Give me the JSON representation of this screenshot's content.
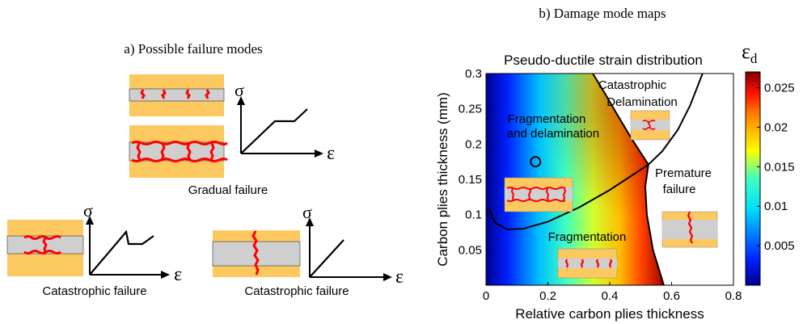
{
  "panel_a": {
    "title": "a) Possible failure modes",
    "stress_symbol": "σ",
    "strain_symbol": "ε",
    "gradual_label": "Gradual failure",
    "catastrophic_label_1": "Catastrophic failure",
    "catastrophic_label_2": "Catastrophic failure"
  },
  "panel_b": {
    "title": "b) Damage mode maps",
    "map_title": "Pseudo-ductile strain distribution",
    "colorbar_symbol": "ε",
    "colorbar_subscript": "d",
    "region_labels": {
      "catastrophic_1": "Catastrophic",
      "catastrophic_2": "Delamination",
      "frag_delam_1": "Fragmentation",
      "frag_delam_2": "and delamination",
      "premature_1": "Premature",
      "premature_2": "failure",
      "fragmentation": "Fragmentation"
    }
  },
  "chart_data": {
    "type": "heatmap",
    "xlabel": "Relative carbon plies thickness",
    "ylabel": "Carbon plies thickness (mm)",
    "xlim": [
      0,
      0.8
    ],
    "ylim": [
      0,
      0.3
    ],
    "x_ticks": [
      "0",
      "0.2",
      "0.4",
      "0.6",
      "0.8"
    ],
    "y_ticks": [
      "0.05",
      "0.1",
      "0.15",
      "0.2",
      "0.25",
      "0.3"
    ],
    "colorbar": {
      "range": [
        0,
        0.027
      ],
      "ticks": [
        "0.005",
        "0.01",
        "0.015",
        "0.02",
        "0.025"
      ],
      "colormap": "jet"
    },
    "boundaries": {
      "fragmentation_lower": [
        [
          0.01,
          0.108
        ],
        [
          0.03,
          0.088
        ],
        [
          0.07,
          0.079
        ],
        [
          0.12,
          0.08
        ],
        [
          0.2,
          0.09
        ],
        [
          0.3,
          0.11
        ],
        [
          0.4,
          0.135
        ],
        [
          0.47,
          0.155
        ],
        [
          0.525,
          0.171
        ]
      ],
      "delamination_left": [
        [
          0.345,
          0.3
        ],
        [
          0.38,
          0.275
        ],
        [
          0.42,
          0.245
        ],
        [
          0.47,
          0.208
        ],
        [
          0.525,
          0.171
        ]
      ],
      "premature_right": [
        [
          0.525,
          0.171
        ],
        [
          0.515,
          0.14
        ],
        [
          0.52,
          0.1
        ],
        [
          0.54,
          0.05
        ],
        [
          0.575,
          0.0
        ]
      ],
      "catastrophic_right": [
        [
          0.525,
          0.171
        ],
        [
          0.57,
          0.19
        ],
        [
          0.62,
          0.22
        ],
        [
          0.66,
          0.255
        ],
        [
          0.7,
          0.3
        ]
      ]
    },
    "marker": {
      "x": 0.16,
      "y": 0.175
    }
  },
  "colors": {
    "carbon_layer": "#fcc860",
    "glass_layer": "#cfcfcf",
    "crack": "#ff0000",
    "line": "#000000"
  }
}
